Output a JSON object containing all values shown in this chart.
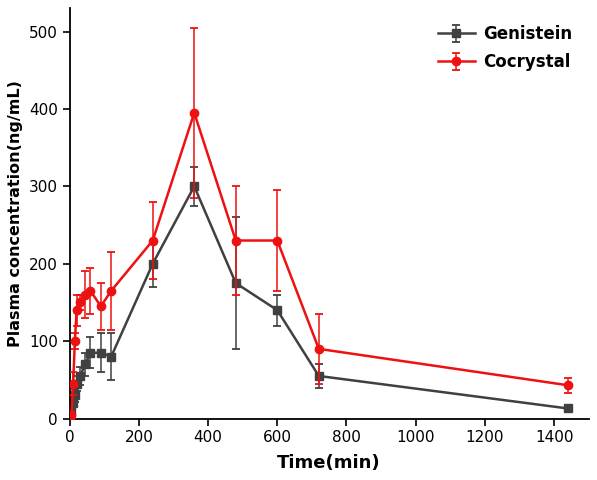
{
  "genistein_x": [
    0,
    5,
    10,
    15,
    20,
    30,
    45,
    60,
    90,
    120,
    240,
    360,
    480,
    600,
    720,
    1440
  ],
  "genistein_y": [
    0,
    8,
    20,
    30,
    45,
    55,
    70,
    85,
    85,
    80,
    200,
    300,
    175,
    140,
    55,
    13
  ],
  "genistein_yerr": [
    0,
    3,
    5,
    8,
    10,
    12,
    15,
    20,
    25,
    30,
    30,
    25,
    85,
    20,
    15,
    5
  ],
  "cocrystal_x": [
    0,
    5,
    10,
    15,
    20,
    30,
    45,
    60,
    90,
    120,
    240,
    360,
    480,
    600,
    720,
    1440
  ],
  "cocrystal_y": [
    0,
    5,
    45,
    100,
    140,
    150,
    160,
    165,
    145,
    165,
    230,
    395,
    230,
    230,
    90,
    43
  ],
  "cocrystal_yerr": [
    0,
    3,
    15,
    10,
    20,
    10,
    30,
    30,
    30,
    50,
    50,
    110,
    70,
    65,
    45,
    10
  ],
  "genistein_color": "#404040",
  "cocrystal_color": "#ee1111",
  "xlabel": "Time(min)",
  "ylabel": "Plasma concentration(ng/mL)",
  "xlim": [
    0,
    1500
  ],
  "ylim": [
    0,
    530
  ],
  "xticks": [
    0,
    200,
    400,
    600,
    800,
    1000,
    1200,
    1400
  ],
  "yticks": [
    0,
    100,
    200,
    300,
    400,
    500
  ],
  "legend_genistein": "Genistein",
  "legend_cocrystal": "Cocrystal",
  "linewidth": 1.8,
  "markersize": 6,
  "capsize": 3
}
